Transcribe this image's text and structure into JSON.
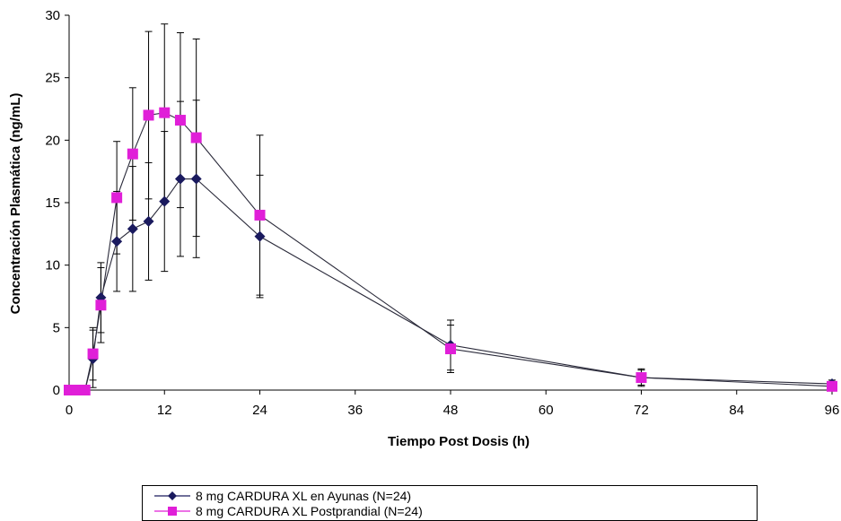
{
  "chart_data": {
    "type": "line",
    "xlabel": "Tiempo Post Dosis (h)",
    "ylabel": "Concentración Plasmática (ng/mL)",
    "xlim": [
      0,
      96
    ],
    "ylim": [
      0,
      30
    ],
    "xticks": [
      0,
      12,
      24,
      36,
      48,
      60,
      72,
      84,
      96
    ],
    "yticks": [
      0,
      5,
      10,
      15,
      20,
      25,
      30
    ],
    "grid": false,
    "legend_position": "bottom",
    "series": [
      {
        "name": "8 mg CARDURA XL en Ayunas (N=24)",
        "color": "#1a1a5e",
        "marker": "diamond",
        "x": [
          0,
          1,
          2,
          3,
          4,
          6,
          8,
          10,
          12,
          14,
          16,
          24,
          48,
          72,
          96
        ],
        "y": [
          0,
          0,
          0,
          2.5,
          7.4,
          11.9,
          12.9,
          13.5,
          15.1,
          16.9,
          16.9,
          12.3,
          3.6,
          1.0,
          0.5
        ],
        "error": [
          0,
          0,
          0,
          2.3,
          2.8,
          4.0,
          5.0,
          4.7,
          5.6,
          6.2,
          6.3,
          4.9,
          2.0,
          0.6,
          0.3
        ]
      },
      {
        "name": "8 mg CARDURA XL Postprandial (N=24)",
        "color": "#e01fd8",
        "marker": "square",
        "x": [
          0,
          1,
          2,
          3,
          4,
          6,
          8,
          10,
          12,
          14,
          16,
          24,
          48,
          72,
          96
        ],
        "y": [
          0,
          0,
          0,
          2.9,
          6.8,
          15.4,
          18.9,
          22.0,
          22.2,
          21.6,
          20.2,
          14.0,
          3.3,
          1.0,
          0.3
        ],
        "error": [
          0,
          0,
          0,
          2.1,
          3.0,
          4.5,
          5.3,
          6.7,
          7.1,
          7.0,
          7.9,
          6.4,
          1.9,
          0.7,
          0.2
        ]
      }
    ]
  }
}
